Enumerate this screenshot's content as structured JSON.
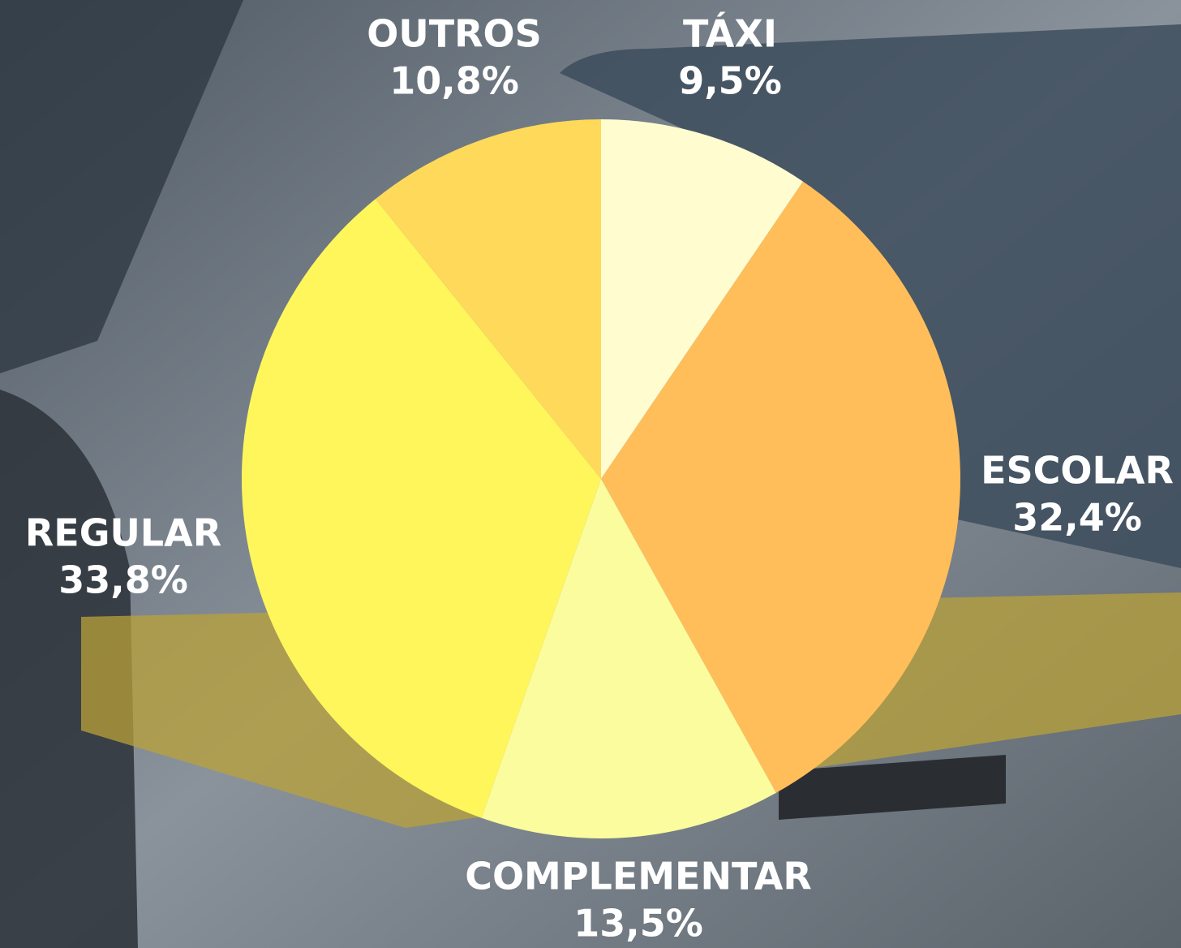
{
  "chart_data": {
    "type": "pie",
    "categories": [
      "TÁXI",
      "ESCOLAR",
      "COMPLEMENTAR",
      "REGULAR",
      "OUTROS"
    ],
    "values": [
      9.5,
      32.4,
      13.5,
      33.8,
      10.8
    ],
    "value_labels": [
      "9,5%",
      "32,4%",
      "13,5%",
      "33,8%",
      "10,8%"
    ],
    "colors": [
      "#fffdd0",
      "#ffbe5a",
      "#fbfc9e",
      "#fff65c",
      "#ffd95a"
    ]
  }
}
